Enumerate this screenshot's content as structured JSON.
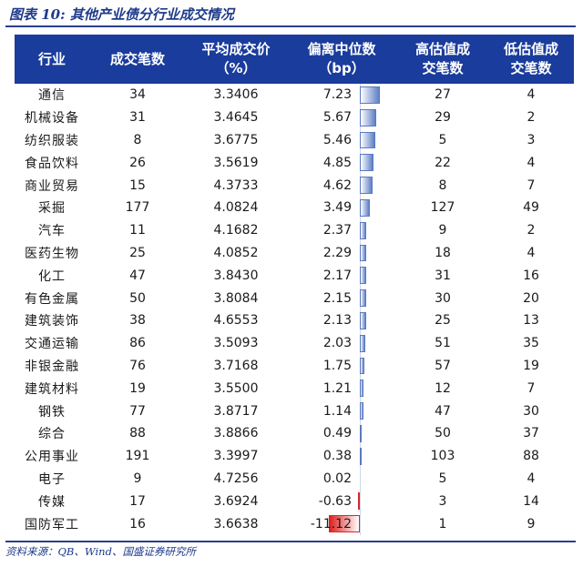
{
  "title": "图表 10: 其他产业债分行业成交情况",
  "source": "资料来源：QB、Wind、国盛证券研究所",
  "columns": [
    "行业",
    "成交笔数",
    "平均成交价（%）",
    "偏离中位数（bp）",
    "高估值成交笔数",
    "低估值成交笔数"
  ],
  "header": {
    "c1": "行业",
    "c2": "成交笔数",
    "c3a": "平均成交价",
    "c3b": "（%）",
    "c4a": "偏离中位数",
    "c4b": "（bp）",
    "c5a": "高估值成",
    "c5b": "交笔数",
    "c6a": "低估值成",
    "c6b": "交笔数"
  },
  "colors": {
    "header_bg": "#1a3c9c",
    "positive_bar": "#5f80c8",
    "negative_bar": "#e02020",
    "title": "#1e3a8a"
  },
  "rows": [
    {
      "industry": "通信",
      "trades": "34",
      "avg_price": "3.3406",
      "deviation": "7.23",
      "high": "27",
      "low": "4"
    },
    {
      "industry": "机械设备",
      "trades": "31",
      "avg_price": "3.4645",
      "deviation": "5.67",
      "high": "29",
      "low": "2"
    },
    {
      "industry": "纺织服装",
      "trades": "8",
      "avg_price": "3.6775",
      "deviation": "5.46",
      "high": "5",
      "low": "3"
    },
    {
      "industry": "食品饮料",
      "trades": "26",
      "avg_price": "3.5619",
      "deviation": "4.85",
      "high": "22",
      "low": "4"
    },
    {
      "industry": "商业贸易",
      "trades": "15",
      "avg_price": "4.3733",
      "deviation": "4.62",
      "high": "8",
      "low": "7"
    },
    {
      "industry": "采掘",
      "trades": "177",
      "avg_price": "4.0824",
      "deviation": "3.49",
      "high": "127",
      "low": "49"
    },
    {
      "industry": "汽车",
      "trades": "11",
      "avg_price": "4.1682",
      "deviation": "2.37",
      "high": "9",
      "low": "2"
    },
    {
      "industry": "医药生物",
      "trades": "25",
      "avg_price": "4.0852",
      "deviation": "2.29",
      "high": "18",
      "low": "4"
    },
    {
      "industry": "化工",
      "trades": "47",
      "avg_price": "3.8430",
      "deviation": "2.17",
      "high": "31",
      "low": "16"
    },
    {
      "industry": "有色金属",
      "trades": "50",
      "avg_price": "3.8084",
      "deviation": "2.15",
      "high": "30",
      "low": "20"
    },
    {
      "industry": "建筑装饰",
      "trades": "38",
      "avg_price": "4.6553",
      "deviation": "2.13",
      "high": "25",
      "low": "13"
    },
    {
      "industry": "交通运输",
      "trades": "86",
      "avg_price": "3.5093",
      "deviation": "2.03",
      "high": "51",
      "low": "35"
    },
    {
      "industry": "非银金融",
      "trades": "76",
      "avg_price": "3.7168",
      "deviation": "1.75",
      "high": "57",
      "low": "19"
    },
    {
      "industry": "建筑材料",
      "trades": "19",
      "avg_price": "3.5500",
      "deviation": "1.21",
      "high": "12",
      "low": "7"
    },
    {
      "industry": "钢铁",
      "trades": "77",
      "avg_price": "3.8717",
      "deviation": "1.14",
      "high": "47",
      "low": "30"
    },
    {
      "industry": "综合",
      "trades": "88",
      "avg_price": "3.8866",
      "deviation": "0.49",
      "high": "50",
      "low": "37"
    },
    {
      "industry": "公用事业",
      "trades": "191",
      "avg_price": "3.3997",
      "deviation": "0.38",
      "high": "103",
      "low": "88"
    },
    {
      "industry": "电子",
      "trades": "9",
      "avg_price": "4.7256",
      "deviation": "0.02",
      "high": "5",
      "low": "4"
    },
    {
      "industry": "传媒",
      "trades": "17",
      "avg_price": "3.6924",
      "deviation": "-0.63",
      "high": "3",
      "low": "14"
    },
    {
      "industry": "国防军工",
      "trades": "16",
      "avg_price": "3.6638",
      "deviation": "-11.12",
      "high": "1",
      "low": "9"
    }
  ]
}
